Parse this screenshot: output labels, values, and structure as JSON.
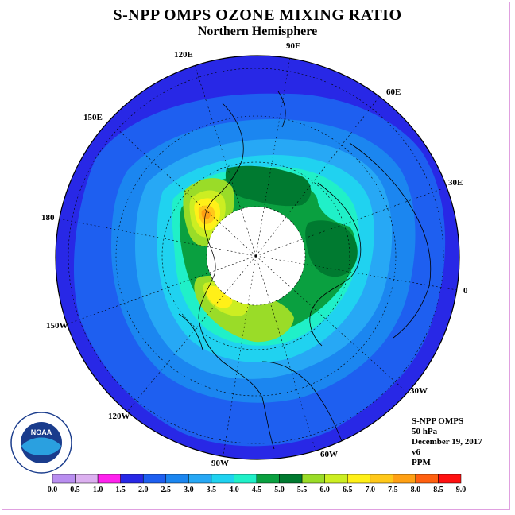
{
  "title": "S-NPP OMPS OZONE MIXING RATIO",
  "subtitle": "Northern Hemisphere",
  "longitude_labels": [
    "120E",
    "90E",
    "60E",
    "150E",
    "30E",
    "180",
    "0",
    "150W",
    "30W",
    "120W",
    "60W",
    "90W"
  ],
  "info": {
    "instrument": "S-NPP OMPS",
    "level": "50 hPa",
    "date": "December 19, 2017",
    "version": "v6",
    "units": "PPM"
  },
  "logo": {
    "name": "noaa-logo",
    "text": "NOAA",
    "ring_text": "NATIONAL OCEANIC AND ATMOSPHERIC ADMINISTRATION • U.S. DEPARTMENT OF COMMERCE"
  },
  "legend": {
    "colors": [
      "#b98ef0",
      "#dcb0f0",
      "#ff22ee",
      "#2828e6",
      "#1e5ff0",
      "#1b86f0",
      "#27a8f5",
      "#20d2f0",
      "#20f0c8",
      "#0aa040",
      "#007a30",
      "#9adc28",
      "#ccee22",
      "#fff018",
      "#ffc81a",
      "#ffa014",
      "#ff6010",
      "#ff1010",
      "#8a5a40"
    ],
    "labels": [
      "0.0",
      "0.5",
      "1.0",
      "1.5",
      "2.0",
      "2.5",
      "3.0",
      "3.5",
      "4.0",
      "4.5",
      "5.0",
      "5.5",
      "6.0",
      "6.5",
      "7.0",
      "7.5",
      "8.0",
      "8.5",
      "9.0"
    ]
  },
  "map": {
    "projection": "north polar stereographic",
    "field": "ozone mixing ratio",
    "polar_night_mask": "white (no data)"
  }
}
